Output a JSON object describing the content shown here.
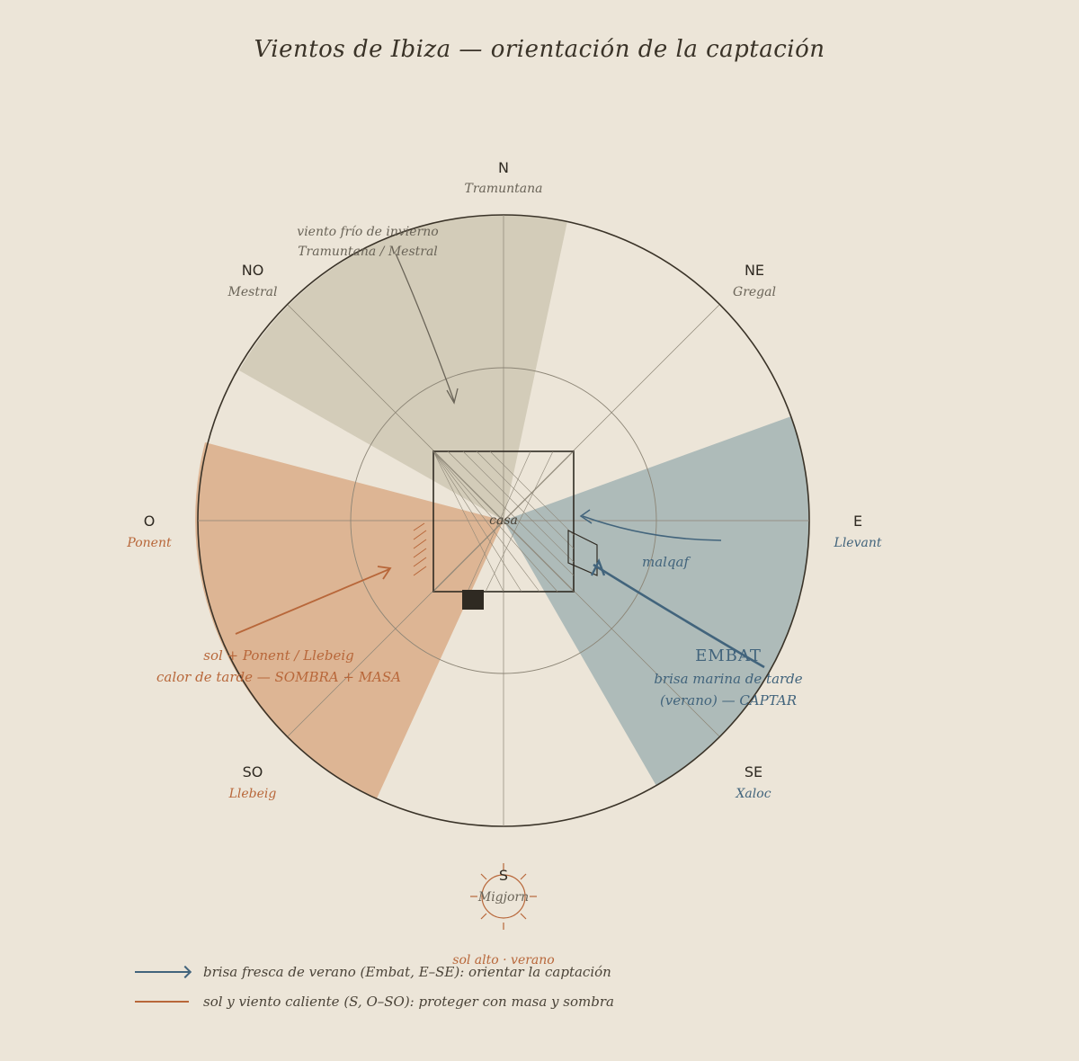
{
  "title": "Vientos de Ibiza — orientación de la captación",
  "directions": {
    "N": {
      "label": "N",
      "wind": "Tramuntana"
    },
    "NE": {
      "label": "NE",
      "wind": "Gregal"
    },
    "E": {
      "label": "E",
      "wind": "Llevant"
    },
    "SE": {
      "label": "SE",
      "wind": "Xaloc"
    },
    "S": {
      "label": "S",
      "wind": "Migjorn"
    },
    "SO": {
      "label": "SO",
      "wind": "Llebeig"
    },
    "O": {
      "label": "O",
      "wind": "Ponent"
    },
    "NO": {
      "label": "NO",
      "wind": "Mestral"
    }
  },
  "annotations": {
    "north_line1": "viento frío de invierno",
    "north_line2": "Tramuntana / Mestral",
    "house": "casa",
    "malqaf": "malqaf",
    "embat_title": "EMBAT",
    "embat_line1": "brisa marina de tarde",
    "embat_line2": "(verano) — CAPTAR",
    "west_line1": "sol + Ponent / Llebeig",
    "west_line2": "calor de tarde — SOMBRA + MASA",
    "sun": "sol alto · verano"
  },
  "legend": [
    {
      "text": "brisa fresca de verano (Embat, E–SE): orientar la captación"
    },
    {
      "text": "sol y viento caliente (S, O–SO): proteger con masa y sombra"
    }
  ],
  "colors": {
    "north_sector": "#d3ccb9",
    "east_sector": "#aebbb9",
    "west_sector": "#ddb594",
    "blue": "#42647c",
    "orange": "#b8673a",
    "grey": "#6a6458",
    "ink": "#2f2a22"
  }
}
